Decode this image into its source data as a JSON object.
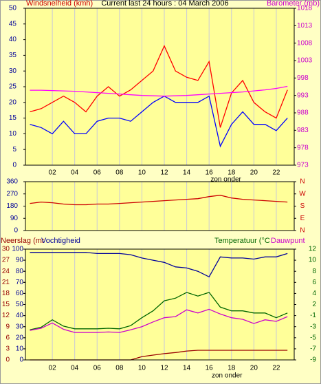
{
  "chart_data": [
    {
      "type": "line",
      "title": "Current last 24 hours : 04 March 2006",
      "y_label": "Windsnelheid (kmh)",
      "y2_label": "Barometer (mb)",
      "annotation": "zon onder",
      "annotation_x": 17.5,
      "x": [
        0,
        1,
        2,
        3,
        4,
        5,
        6,
        7,
        8,
        9,
        10,
        11,
        12,
        13,
        14,
        15,
        16,
        17,
        18,
        19,
        20,
        21,
        22,
        23
      ],
      "xlim": [
        -0.4,
        23.6
      ],
      "xticks": [
        {
          "value": 2,
          "label": "02"
        },
        {
          "value": 4,
          "label": "04"
        },
        {
          "value": 6,
          "label": "06"
        },
        {
          "value": 8,
          "label": "08"
        },
        10,
        12,
        14,
        16,
        18,
        20,
        22
      ],
      "ylim": [
        0,
        50
      ],
      "yticks": [
        0,
        5,
        10,
        15,
        20,
        25,
        30,
        35,
        40,
        45,
        50
      ],
      "y2lim": [
        973,
        1018
      ],
      "y2ticks": [
        973,
        978,
        983,
        988,
        993,
        998,
        1003,
        1008,
        1013,
        1018
      ],
      "grid": true,
      "series": [
        {
          "color": "#ff0000",
          "values": [
            17,
            18,
            20,
            22,
            20,
            17,
            22,
            25,
            22,
            24,
            27,
            30,
            38,
            30,
            28,
            27,
            33,
            12,
            23,
            27,
            20,
            17,
            15,
            24
          ]
        },
        {
          "color": "#0000ff",
          "values": [
            13,
            12,
            10,
            14,
            10,
            10,
            14,
            15,
            15,
            14,
            17,
            20,
            22,
            20,
            20,
            20,
            22,
            6,
            13,
            17,
            13,
            13,
            11,
            15
          ]
        },
        {
          "color": "#ff00ff",
          "axis": "y2",
          "values": [
            994.5,
            994.5,
            994.4,
            994.3,
            994.2,
            994.0,
            993.8,
            993.6,
            993.4,
            993.2,
            993.0,
            992.9,
            992.8,
            992.9,
            993.0,
            993.2,
            993.4,
            993.6,
            993.8,
            994.0,
            994.3,
            994.6,
            995.0,
            995.6
          ]
        }
      ]
    },
    {
      "type": "line",
      "x": [
        0,
        1,
        2,
        3,
        4,
        5,
        6,
        7,
        8,
        9,
        10,
        11,
        12,
        13,
        14,
        15,
        16,
        17,
        18,
        19,
        20,
        21,
        22,
        23
      ],
      "xlim": [
        -0.4,
        23.6
      ],
      "ylim": [
        0,
        360
      ],
      "yticks": [
        0,
        90,
        180,
        270,
        360
      ],
      "y2lim": [
        0,
        360
      ],
      "y2ticks": [
        {
          "value": 0,
          "label": "N"
        },
        {
          "value": 90,
          "label": "E"
        },
        {
          "value": 180,
          "label": "S"
        },
        {
          "value": 270,
          "label": "W"
        },
        {
          "value": 360,
          "label": "N"
        }
      ],
      "grid": true,
      "series": [
        {
          "color": "#cc0000",
          "values": [
            200,
            210,
            205,
            195,
            190,
            190,
            195,
            195,
            200,
            205,
            210,
            215,
            220,
            225,
            230,
            235,
            250,
            260,
            240,
            230,
            225,
            220,
            215,
            210
          ]
        }
      ]
    },
    {
      "type": "line",
      "y_label": "Neerslag (mr",
      "y3_label": "Vochtigheid",
      "y2_label": "Temperatuur (°C",
      "y2_label_2": "Dauwpunt",
      "annotation": "zon onder",
      "annotation_x": 17.6,
      "x": [
        0,
        1,
        2,
        3,
        4,
        5,
        6,
        7,
        8,
        9,
        10,
        11,
        12,
        13,
        14,
        15,
        16,
        17,
        18,
        19,
        20,
        21,
        22,
        23
      ],
      "xlim": [
        -0.4,
        23.6
      ],
      "xticks": [
        {
          "value": 2,
          "label": "02"
        },
        {
          "value": 4,
          "label": "04"
        },
        {
          "value": 6,
          "label": "06"
        },
        {
          "value": 8,
          "label": "08"
        },
        10,
        12,
        14,
        16,
        18,
        20,
        22
      ],
      "ylim": [
        0,
        30
      ],
      "yticks": [
        0,
        3,
        6,
        9,
        12,
        15,
        18,
        21,
        24,
        27,
        30
      ],
      "y3lim": [
        0,
        100
      ],
      "y3ticks": [
        0,
        10,
        20,
        30,
        40,
        50,
        60,
        70,
        80,
        90,
        100
      ],
      "y2lim": [
        -9,
        12
      ],
      "y2ticks": [
        -9,
        {
          "value": -6.9,
          "label": "-7"
        },
        {
          "value": -4.8,
          "label": "-5"
        },
        {
          "value": -2.7,
          "label": "-3"
        },
        {
          "value": -0.6,
          "label": "-1"
        },
        {
          "value": 1.5,
          "label": "2"
        },
        {
          "value": 3.6,
          "label": "4"
        },
        {
          "value": 5.7,
          "label": "6"
        },
        {
          "value": 7.8,
          "label": "8"
        },
        {
          "value": 9.9,
          "label": "10"
        },
        12
      ],
      "grid": true,
      "series": [
        {
          "color": "#000099",
          "axis": "y3",
          "values": [
            97,
            97,
            97,
            97,
            97,
            97,
            96,
            96,
            96,
            95,
            92,
            90,
            88,
            84,
            83,
            80,
            75,
            93,
            92,
            92,
            91,
            93,
            93,
            96
          ]
        },
        {
          "color": "#006600",
          "axis": "y2",
          "values": [
            -3.3,
            -2.8,
            -1.4,
            -2.6,
            -3.1,
            -3.1,
            -3.1,
            -3.0,
            -3.1,
            -2.5,
            -1.0,
            0.3,
            2.2,
            2.7,
            3.8,
            3.1,
            3.8,
            1.0,
            0.3,
            0.3,
            -0.1,
            -0.1,
            -1.0,
            -0.1
          ]
        },
        {
          "color": "#cc00cc",
          "axis": "y2",
          "values": [
            -3.4,
            -3.0,
            -2.0,
            -3.2,
            -3.8,
            -3.8,
            -3.8,
            -3.7,
            -3.8,
            -3.3,
            -2.7,
            -1.8,
            -1.0,
            -0.8,
            0.5,
            -0.1,
            0.6,
            -0.3,
            -1.0,
            -1.3,
            -2.1,
            -1.4,
            -1.7,
            -0.8
          ]
        },
        {
          "color": "#990000",
          "values": [
            0,
            0,
            0,
            0,
            0,
            0,
            0,
            0,
            0,
            0,
            0.9,
            1.3,
            1.7,
            2.0,
            2.4,
            2.6,
            2.6,
            2.6,
            2.6,
            2.6,
            2.6,
            2.6,
            2.6,
            2.6
          ]
        }
      ]
    }
  ]
}
